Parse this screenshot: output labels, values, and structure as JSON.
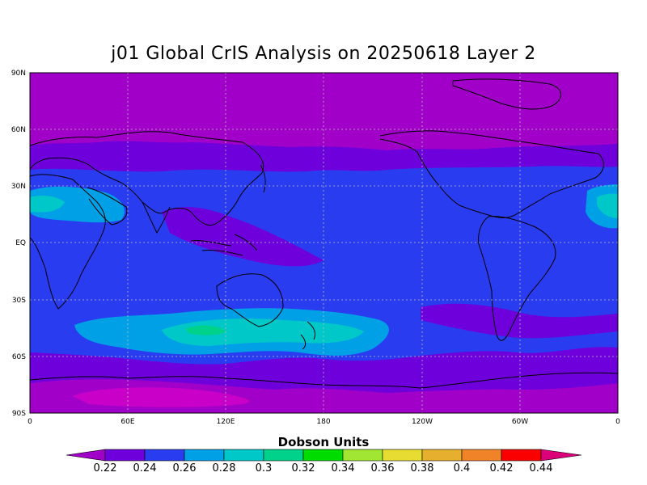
{
  "title": "j01 Global CrIS Analysis on 20250618 Layer 2",
  "map": {
    "lon_labels": [
      "0",
      "60E",
      "120E",
      "180",
      "120W",
      "60W",
      "0"
    ],
    "lat_labels": [
      "90N",
      "60N",
      "30N",
      "EQ",
      "30S",
      "60S",
      "90S"
    ],
    "grid": "dashed",
    "projection": "cylindrical equidistant"
  },
  "colorbar": {
    "label": "Dobson Units",
    "ticks": [
      "0.22",
      "0.24",
      "0.26",
      "0.28",
      "0.3",
      "0.32",
      "0.34",
      "0.36",
      "0.38",
      "0.4",
      "0.42",
      "0.44"
    ],
    "colors": [
      "#a000c8",
      "#6e00dc",
      "#2a3cf0",
      "#00a0e6",
      "#00c8c8",
      "#00d28c",
      "#00dc00",
      "#a0e632",
      "#e6dc32",
      "#e6af2d",
      "#f08228",
      "#fa0000",
      "#dc0078"
    ]
  }
}
